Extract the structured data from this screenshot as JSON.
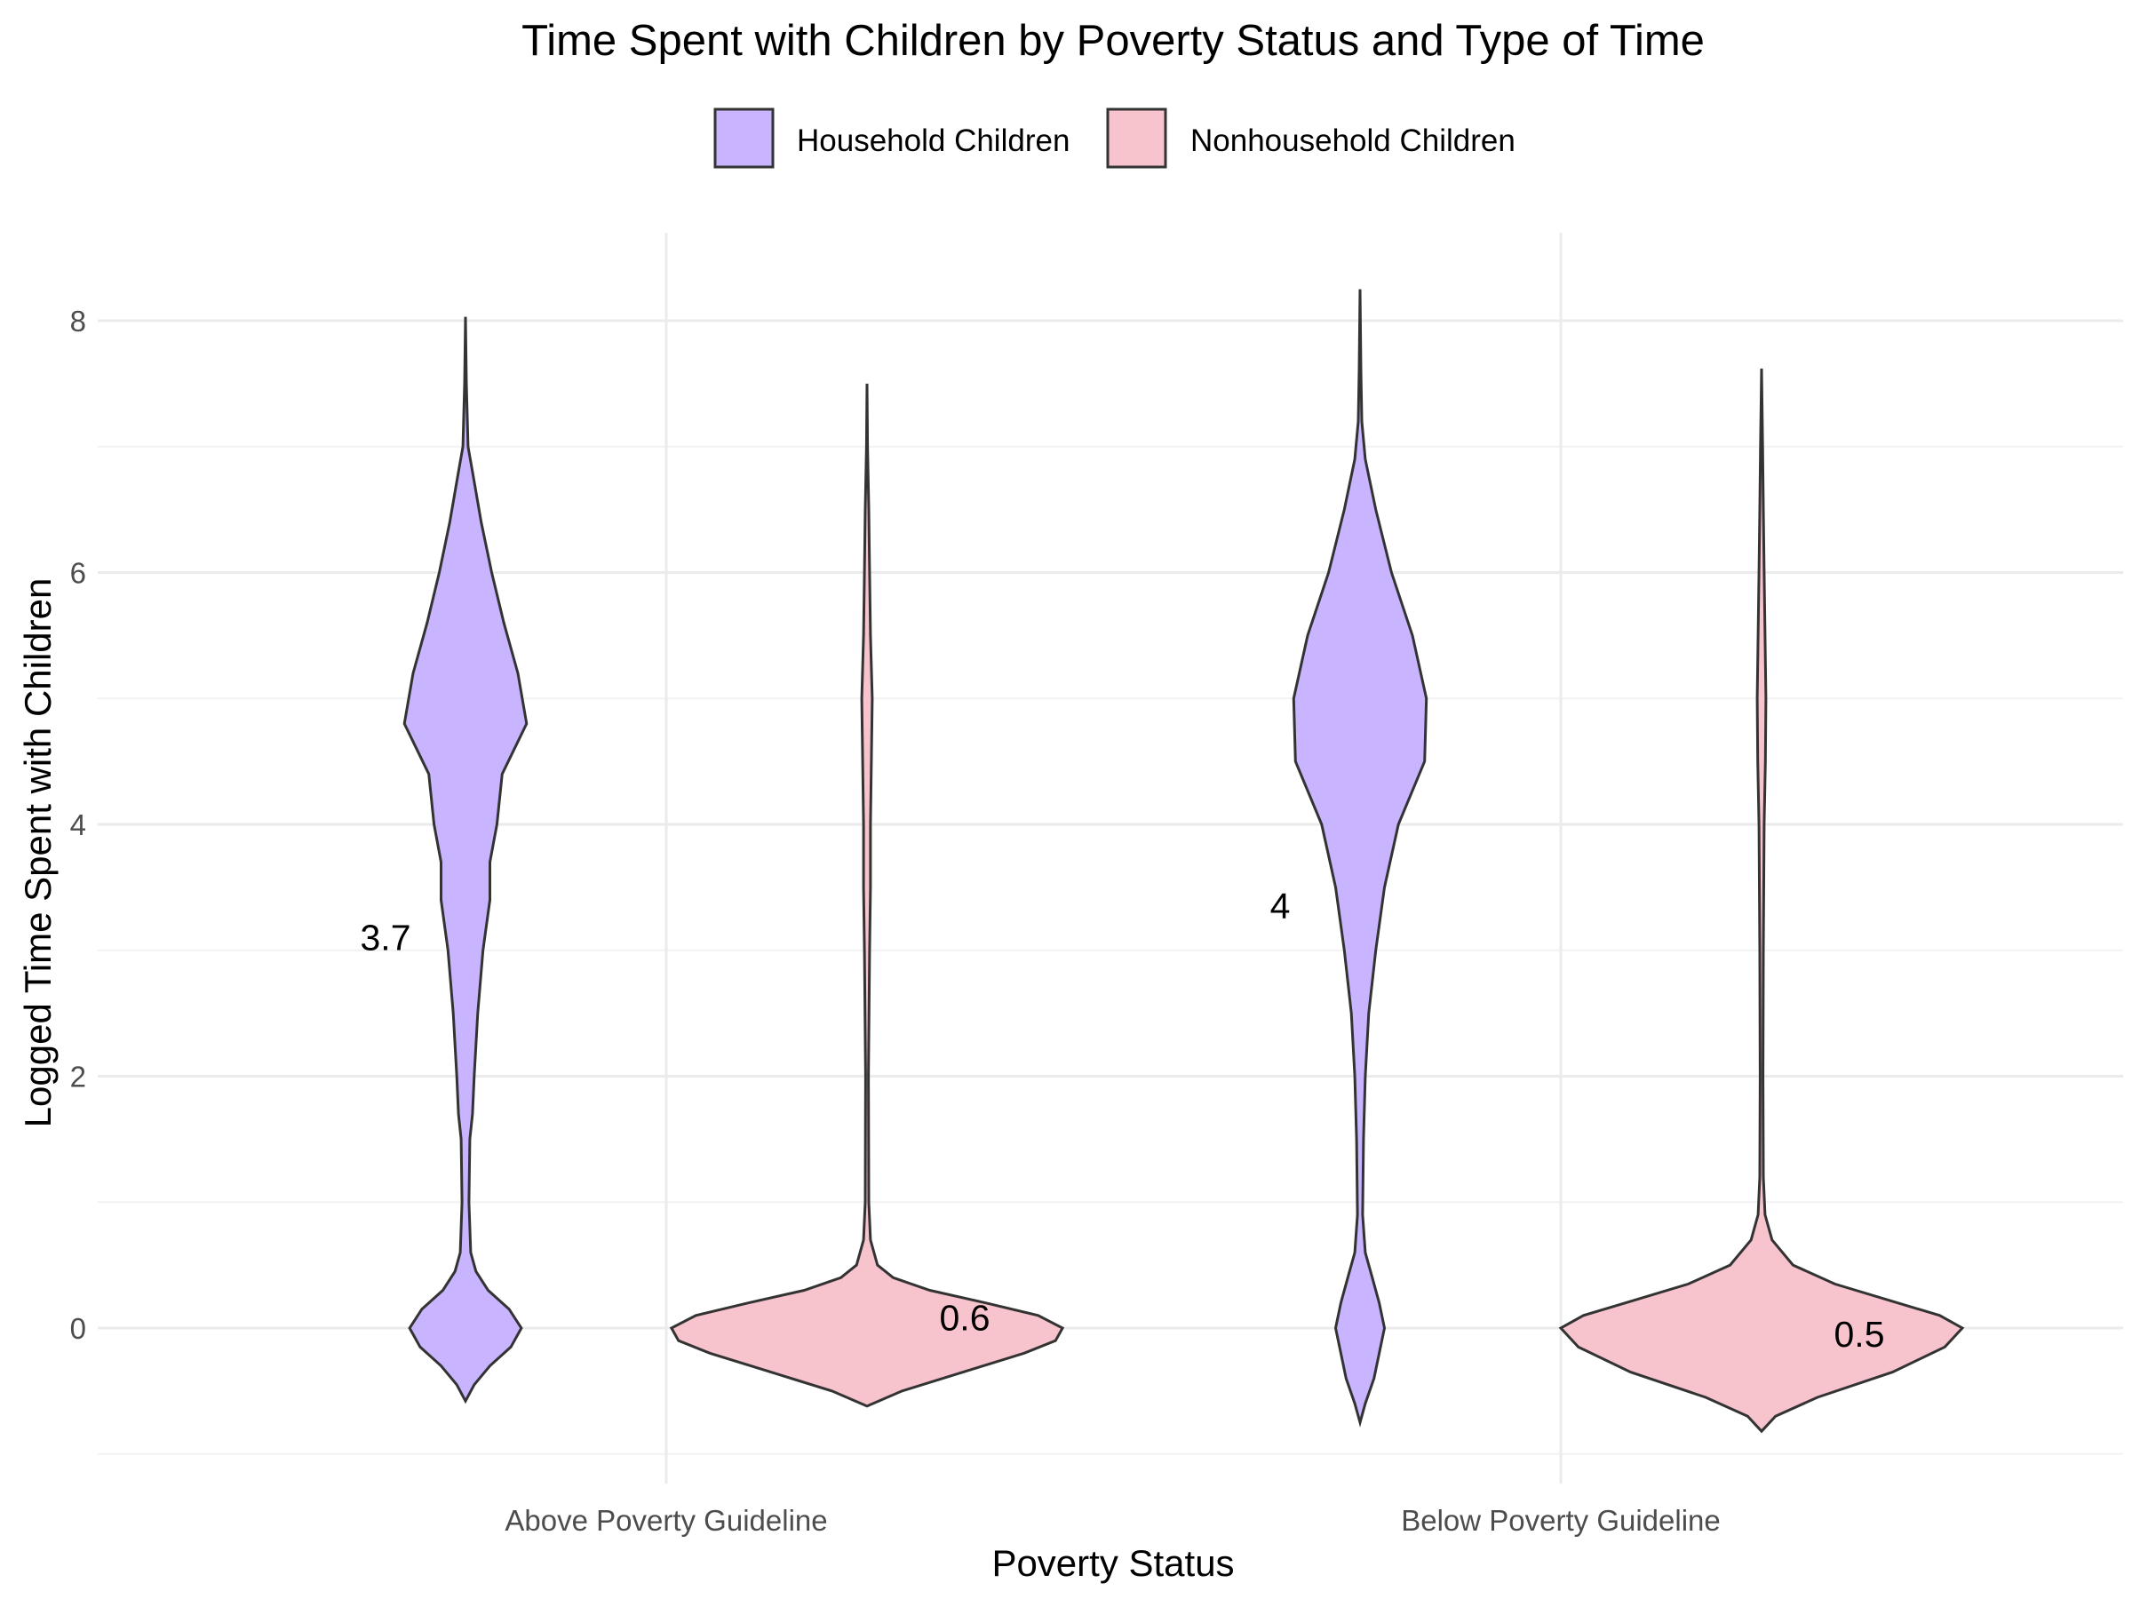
{
  "chart_data": {
    "type": "violin",
    "title": "Time Spent with Children by Poverty Status and Type of Time",
    "xlabel": "Poverty Status",
    "ylabel": "Logged Time Spent with Children",
    "ylim": [
      -1,
      8.7
    ],
    "yticks": [
      0,
      2,
      4,
      6,
      8
    ],
    "grid": true,
    "legend_position": "top",
    "categories": [
      "Above Poverty Guideline",
      "Below Poverty Guideline"
    ],
    "series": [
      {
        "name": "Household Children",
        "color": "#c8b4ff",
        "groups": [
          {
            "category": "Above Poverty Guideline",
            "median_label": "3.7",
            "label_y": 3.1,
            "density": [
              [
                -0.58,
                0
              ],
              [
                -0.45,
                0.05
              ],
              [
                -0.3,
                0.14
              ],
              [
                -0.15,
                0.26
              ],
              [
                0,
                0.32
              ],
              [
                0.15,
                0.25
              ],
              [
                0.3,
                0.13
              ],
              [
                0.45,
                0.06
              ],
              [
                0.6,
                0.03
              ],
              [
                1.0,
                0.02
              ],
              [
                1.5,
                0.025
              ],
              [
                1.7,
                0.04
              ],
              [
                2.0,
                0.05
              ],
              [
                2.5,
                0.07
              ],
              [
                3.0,
                0.1
              ],
              [
                3.4,
                0.14
              ],
              [
                3.7,
                0.14
              ],
              [
                4.0,
                0.18
              ],
              [
                4.4,
                0.21
              ],
              [
                4.8,
                0.35
              ],
              [
                5.2,
                0.3
              ],
              [
                5.6,
                0.22
              ],
              [
                6.0,
                0.15
              ],
              [
                6.4,
                0.09
              ],
              [
                6.8,
                0.04
              ],
              [
                7.0,
                0.015
              ],
              [
                7.5,
                0.005
              ],
              [
                8.03,
                0
              ]
            ]
          },
          {
            "category": "Below Poverty Guideline",
            "median_label": "4",
            "label_y": 3.35,
            "density": [
              [
                -0.75,
                0
              ],
              [
                -0.6,
                0.03
              ],
              [
                -0.4,
                0.08
              ],
              [
                -0.2,
                0.11
              ],
              [
                0,
                0.14
              ],
              [
                0.2,
                0.11
              ],
              [
                0.4,
                0.07
              ],
              [
                0.6,
                0.03
              ],
              [
                0.9,
                0.015
              ],
              [
                1.5,
                0.02
              ],
              [
                2.0,
                0.03
              ],
              [
                2.5,
                0.05
              ],
              [
                3.0,
                0.09
              ],
              [
                3.5,
                0.14
              ],
              [
                4.0,
                0.22
              ],
              [
                4.5,
                0.37
              ],
              [
                5.0,
                0.38
              ],
              [
                5.5,
                0.3
              ],
              [
                6.0,
                0.18
              ],
              [
                6.5,
                0.09
              ],
              [
                6.9,
                0.03
              ],
              [
                7.2,
                0.01
              ],
              [
                7.6,
                0.005
              ],
              [
                8.25,
                0
              ]
            ]
          }
        ]
      },
      {
        "name": "Nonhousehold Children",
        "color": "#f7c4cd",
        "groups": [
          {
            "category": "Above Poverty Guideline",
            "median_label": "0.6",
            "label_y": 0.08,
            "density": [
              [
                -0.62,
                0
              ],
              [
                -0.5,
                0.2
              ],
              [
                -0.35,
                0.55
              ],
              [
                -0.2,
                0.9
              ],
              [
                -0.1,
                1.08
              ],
              [
                0,
                1.12
              ],
              [
                0.1,
                0.98
              ],
              [
                0.2,
                0.68
              ],
              [
                0.3,
                0.36
              ],
              [
                0.4,
                0.15
              ],
              [
                0.5,
                0.06
              ],
              [
                0.7,
                0.02
              ],
              [
                1.0,
                0.01
              ],
              [
                2.0,
                0.008
              ],
              [
                3.0,
                0.015
              ],
              [
                3.5,
                0.02
              ],
              [
                4.0,
                0.02
              ],
              [
                4.5,
                0.025
              ],
              [
                5.0,
                0.03
              ],
              [
                5.5,
                0.02
              ],
              [
                6.0,
                0.015
              ],
              [
                6.5,
                0.01
              ],
              [
                7.0,
                0.003
              ],
              [
                7.5,
                0
              ]
            ]
          },
          {
            "category": "Below Poverty Guideline",
            "median_label": "0.5",
            "label_y": -0.05,
            "density": [
              [
                -0.82,
                0
              ],
              [
                -0.7,
                0.08
              ],
              [
                -0.55,
                0.32
              ],
              [
                -0.35,
                0.75
              ],
              [
                -0.15,
                1.05
              ],
              [
                0,
                1.15
              ],
              [
                0.1,
                1.02
              ],
              [
                0.2,
                0.78
              ],
              [
                0.35,
                0.42
              ],
              [
                0.5,
                0.18
              ],
              [
                0.7,
                0.06
              ],
              [
                0.9,
                0.02
              ],
              [
                1.2,
                0.01
              ],
              [
                2.0,
                0.008
              ],
              [
                3.0,
                0.01
              ],
              [
                4.0,
                0.015
              ],
              [
                4.5,
                0.022
              ],
              [
                5.0,
                0.025
              ],
              [
                5.5,
                0.02
              ],
              [
                6.0,
                0.015
              ],
              [
                6.5,
                0.01
              ],
              [
                7.0,
                0.006
              ],
              [
                7.62,
                0
              ]
            ]
          }
        ]
      }
    ]
  }
}
